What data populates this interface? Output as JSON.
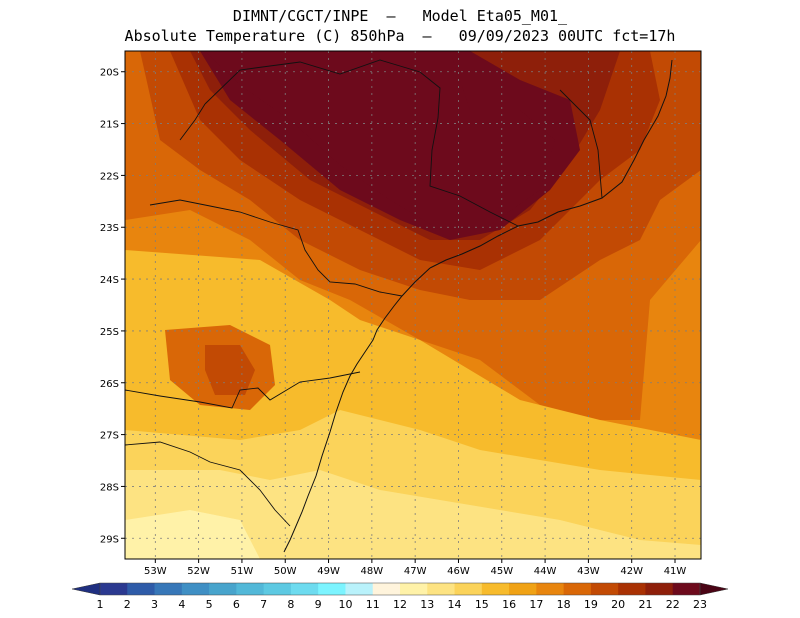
{
  "header": {
    "line1": "DIMNT/CGCT/INPE  –   Model Eta05_M01_",
    "line2": "Absolute Temperature (C) 850hPa  –   09/09/2023 00UTC fct=17h"
  },
  "map": {
    "lat_labels": [
      "20S",
      "21S",
      "22S",
      "23S",
      "24S",
      "25S",
      "26S",
      "27S",
      "28S",
      "29S"
    ],
    "lon_labels": [
      "53W",
      "52W",
      "51W",
      "50W",
      "49W",
      "48W",
      "47W",
      "46W",
      "45W",
      "44W",
      "43W",
      "42W",
      "41W"
    ],
    "lat_range": [
      -29.4,
      -19.6
    ],
    "lon_range": [
      -53.7,
      -40.4
    ]
  },
  "chart_data": {
    "type": "heatmap",
    "title": "Absolute Temperature (C) 850hPa",
    "variable": "Absolute Temperature",
    "units": "C",
    "level": "850hPa",
    "date": "09/09/2023 00UTC",
    "forecast": "fct=17h",
    "model": "Eta05_M01_",
    "levels": [
      1,
      2,
      3,
      4,
      5,
      6,
      7,
      8,
      9,
      10,
      11,
      12,
      13,
      14,
      15,
      16,
      17,
      18,
      19,
      20,
      21,
      22,
      23
    ],
    "colors": [
      "#2b3990",
      "#2e5ba8",
      "#3777b8",
      "#3f8fc4",
      "#48a4cc",
      "#52b8d8",
      "#5dc9e2",
      "#6ddbef",
      "#7cf4ff",
      "#b9f2fb",
      "#fff4dc",
      "#fff2a8",
      "#fde382",
      "#fbd35a",
      "#f7bb2c",
      "#f0a215",
      "#e8850e",
      "#d96707",
      "#c24a04",
      "#a93103",
      "#8e1f0a",
      "#6d0a1c"
    ],
    "max_center": {
      "lat": -21.5,
      "lon": -47.2,
      "value": 23
    },
    "min_area": {
      "lat": -29.2,
      "lon": -53.0,
      "value": 12
    }
  }
}
